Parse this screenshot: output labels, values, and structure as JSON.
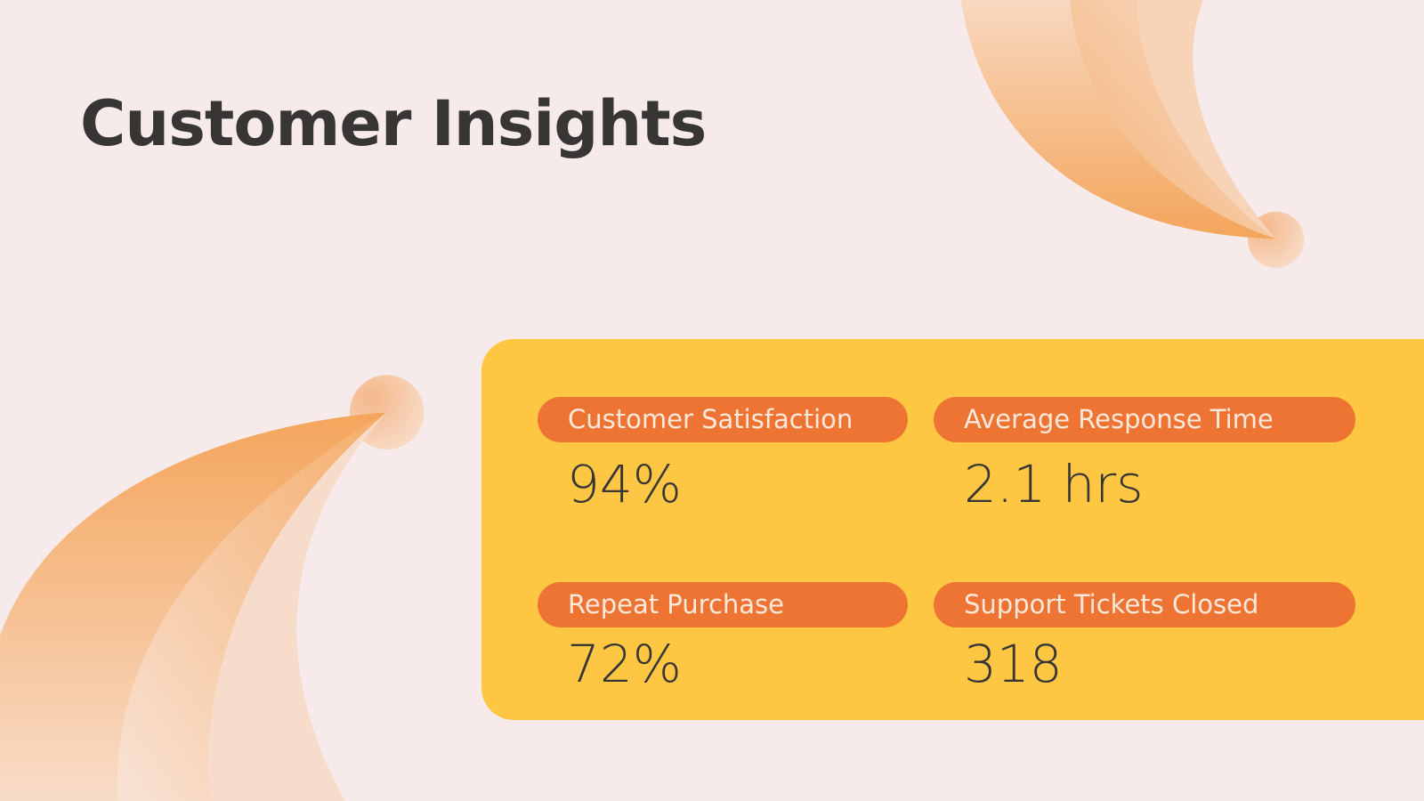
{
  "header": {
    "title": "Customer Insights"
  },
  "metrics": [
    {
      "label": "Customer Satisfaction",
      "value": "94%"
    },
    {
      "label": "Average Response Time",
      "value": "2.1 hrs"
    },
    {
      "label": "Repeat Purchase",
      "value": "72%"
    },
    {
      "label": "Support Tickets Closed",
      "value": "318"
    }
  ]
}
